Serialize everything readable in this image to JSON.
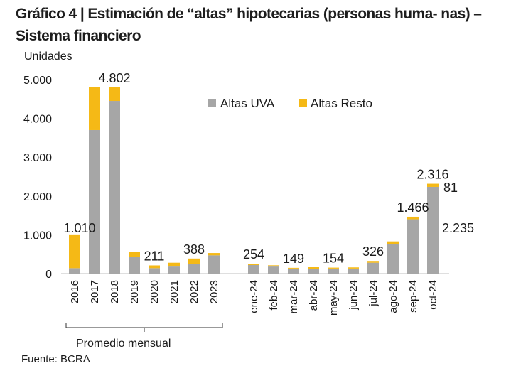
{
  "header": {
    "title": "Gráfico 4 | Estimación de “altas” hipotecarias (personas huma- nas) – Sistema financiero",
    "units": "Unidades",
    "source": "Fuente: BCRA"
  },
  "chart_data": {
    "type": "bar",
    "stacked": true,
    "title": "",
    "ylabel": "Unidades",
    "ylim": [
      0,
      5000
    ],
    "yticks": [
      "0",
      "1.000",
      "2.000",
      "3.000",
      "4.000",
      "5.000"
    ],
    "ytick_values": [
      0,
      1000,
      2000,
      3000,
      4000,
      5000
    ],
    "categories": [
      "2016",
      "2017",
      "2018",
      "2019",
      "2020",
      "2021",
      "2022",
      "2023",
      "ene-24",
      "feb-24",
      "mar-24",
      "abr-24",
      "may-24",
      "jun-24",
      "jul-24",
      "ago-24",
      "sep-24",
      "oct-24"
    ],
    "series": [
      {
        "name": "Altas UVA",
        "color": "#a6a6a6",
        "values": [
          140,
          3700,
          4450,
          430,
          140,
          200,
          250,
          470,
          220,
          200,
          130,
          120,
          130,
          130,
          280,
          760,
          1400,
          2235
        ]
      },
      {
        "name": "Altas Resto",
        "color": "#f5b916",
        "values": [
          870,
          1100,
          352,
          120,
          71,
          80,
          138,
          60,
          34,
          14,
          19,
          50,
          24,
          30,
          46,
          70,
          66,
          81
        ]
      }
    ],
    "bar_labels": [
      {
        "index": 0,
        "text": "1.010"
      },
      {
        "index": 2,
        "text": "4.802"
      },
      {
        "index": 4,
        "text": "211"
      },
      {
        "index": 6,
        "text": "388"
      },
      {
        "index": 8,
        "text": "254"
      },
      {
        "index": 10,
        "text": "149"
      },
      {
        "index": 12,
        "text": "154"
      },
      {
        "index": 14,
        "text": "326"
      },
      {
        "index": 16,
        "text": "1.466"
      },
      {
        "index": 17,
        "text": "2.316"
      }
    ],
    "side_labels": [
      {
        "text": "81",
        "color": "#d4a017"
      },
      {
        "text": "2.235",
        "color": "#a6a6a6"
      }
    ],
    "group_label": "Promedio mensual",
    "legend_position": "top-right",
    "grid": false
  }
}
